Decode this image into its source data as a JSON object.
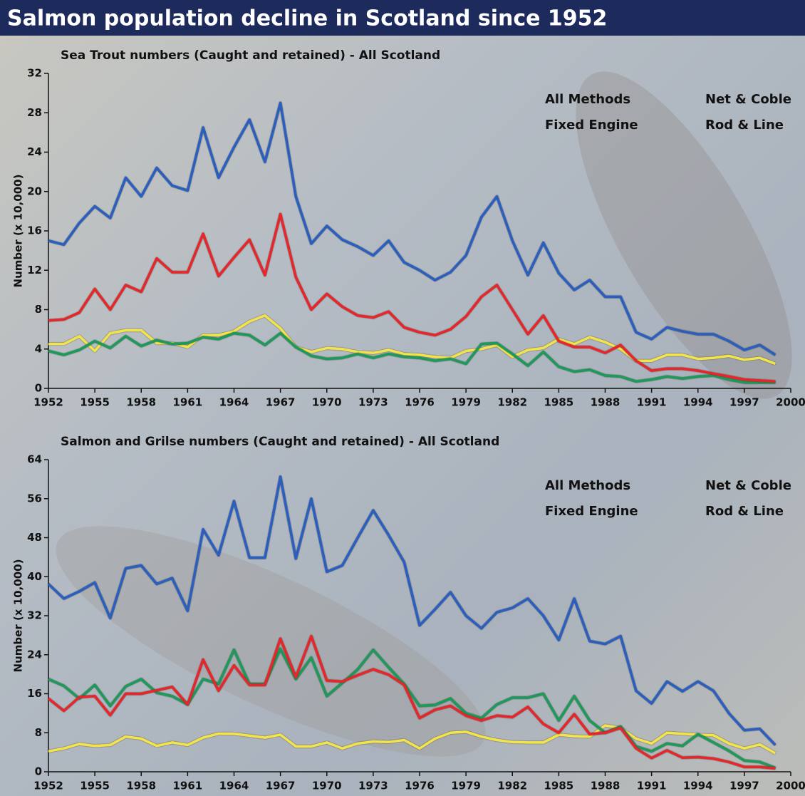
{
  "title": "Salmon population decline in Scotland since 1952",
  "chart_data": [
    {
      "type": "line",
      "title": "Sea Trout numbers (Caught and retained) - All Scotland",
      "ylabel": "Number (x 10,000)",
      "x": [
        1952,
        1953,
        1954,
        1955,
        1956,
        1957,
        1958,
        1959,
        1960,
        1961,
        1962,
        1963,
        1964,
        1965,
        1966,
        1967,
        1968,
        1969,
        1970,
        1971,
        1972,
        1973,
        1974,
        1975,
        1976,
        1977,
        1978,
        1979,
        1980,
        1981,
        1982,
        1983,
        1984,
        1985,
        1986,
        1987,
        1988,
        1989,
        1990,
        1991,
        1992,
        1993,
        1994,
        1995,
        1996,
        1997,
        1998,
        1999
      ],
      "xlim": [
        1952,
        2000
      ],
      "xticks": [
        1952,
        1955,
        1958,
        1961,
        1964,
        1967,
        1970,
        1973,
        1976,
        1979,
        1982,
        1985,
        1988,
        1991,
        1994,
        1997,
        2000
      ],
      "ylim": [
        0,
        32
      ],
      "yticks": [
        0,
        4,
        8,
        12,
        16,
        20,
        24,
        28,
        32
      ],
      "legend": "upper right",
      "series": [
        {
          "name": "All Methods",
          "color": "#2a5fbf",
          "values": [
            15,
            14.6,
            16.8,
            18.5,
            17.3,
            21.4,
            19.5,
            22.4,
            20.6,
            20.1,
            26.5,
            21.4,
            24.5,
            27.3,
            23,
            29,
            19.5,
            14.7,
            16.5,
            15.1,
            14.4,
            13.5,
            15,
            12.8,
            12,
            11,
            11.8,
            13.5,
            17.4,
            19.5,
            15,
            11.5,
            14.8,
            11.7,
            10,
            11,
            9.3,
            9.3,
            5.7,
            5,
            6.2,
            5.8,
            5.5,
            5.5,
            4.8,
            3.9,
            4.4,
            3.4
          ]
        },
        {
          "name": "Net & Coble",
          "color": "#e8262a",
          "values": [
            6.9,
            7,
            7.7,
            10.1,
            8,
            10.5,
            9.8,
            13.2,
            11.8,
            11.8,
            15.7,
            11.4,
            13.3,
            15.1,
            11.5,
            17.7,
            11.3,
            8,
            9.6,
            8.3,
            7.4,
            7.2,
            7.8,
            6.2,
            5.7,
            5.4,
            6,
            7.3,
            9.3,
            10.5,
            8,
            5.5,
            7.4,
            4.8,
            4.2,
            4.2,
            3.6,
            4.4,
            2.8,
            1.8,
            2,
            2,
            1.8,
            1.5,
            1.2,
            0.9,
            0.8,
            0.7
          ]
        },
        {
          "name": "Fixed Engine",
          "color": "#1f9a5a",
          "values": [
            3.8,
            3.4,
            3.9,
            4.8,
            4.1,
            5.3,
            4.3,
            4.9,
            4.5,
            4.6,
            5.2,
            5,
            5.6,
            5.4,
            4.4,
            5.6,
            4.2,
            3.3,
            3,
            3.1,
            3.5,
            3.1,
            3.5,
            3.2,
            3.1,
            2.8,
            3,
            2.5,
            4.5,
            4.6,
            3.5,
            2.3,
            3.7,
            2.2,
            1.7,
            1.9,
            1.3,
            1.2,
            0.7,
            0.9,
            1.2,
            1,
            1.2,
            1.3,
            0.9,
            0.6,
            0.6,
            0.6
          ]
        },
        {
          "name": "Rod & Line",
          "color": "#f2e44a",
          "values": [
            4.5,
            4.5,
            5.3,
            3.8,
            5.6,
            5.9,
            5.9,
            4.6,
            4.6,
            4.2,
            5.4,
            5.4,
            5.8,
            6.8,
            7.4,
            6.1,
            4.2,
            3.7,
            4.1,
            4,
            3.7,
            3.6,
            3.9,
            3.5,
            3.4,
            3.2,
            3.1,
            3.8,
            4,
            4.4,
            3.2,
            3.9,
            4.1,
            5,
            4.5,
            5.2,
            4.7,
            4,
            2.8,
            2.8,
            3.4,
            3.4,
            3,
            3.1,
            3.3,
            2.9,
            3.1,
            2.5
          ]
        }
      ]
    },
    {
      "type": "line",
      "title": "Salmon and Grilse numbers (Caught and retained) - All Scotland",
      "ylabel": "Number (x 10,000)",
      "x": [
        1952,
        1953,
        1954,
        1955,
        1956,
        1957,
        1958,
        1959,
        1960,
        1961,
        1962,
        1963,
        1964,
        1965,
        1966,
        1967,
        1968,
        1969,
        1970,
        1971,
        1972,
        1973,
        1974,
        1975,
        1976,
        1977,
        1978,
        1979,
        1980,
        1981,
        1982,
        1983,
        1984,
        1985,
        1986,
        1987,
        1988,
        1989,
        1990,
        1991,
        1992,
        1993,
        1994,
        1995,
        1996,
        1997,
        1998,
        1999
      ],
      "xlim": [
        1952,
        2000
      ],
      "xticks": [
        1952,
        1955,
        1958,
        1961,
        1964,
        1967,
        1970,
        1973,
        1976,
        1979,
        1982,
        1985,
        1988,
        1991,
        1994,
        1997,
        2000
      ],
      "ylim": [
        0,
        64
      ],
      "yticks": [
        0,
        8,
        16,
        24,
        32,
        40,
        48,
        56,
        64
      ],
      "legend": "upper right",
      "series": [
        {
          "name": "All Methods",
          "color": "#2a5fbf",
          "values": [
            38.5,
            35.5,
            37,
            38.8,
            31.5,
            41.7,
            42.3,
            38.5,
            39.7,
            33,
            49.7,
            44.4,
            55.5,
            43.9,
            43.9,
            60.5,
            43.7,
            56,
            41,
            42.3,
            48,
            53.6,
            48.5,
            43,
            30,
            33.3,
            36.8,
            32,
            29.4,
            32.7,
            33.6,
            35.5,
            32,
            27,
            35.5,
            26.8,
            26.2,
            27.8,
            16.6,
            14,
            18.5,
            16.5,
            18.5,
            16.6,
            12,
            8.5,
            8.8,
            5.5
          ]
        },
        {
          "name": "Net & Coble",
          "color": "#e8262a",
          "values": [
            15,
            12.5,
            15.3,
            15.5,
            11.6,
            16,
            16,
            16.7,
            17.4,
            13.8,
            23,
            16.6,
            21.8,
            17.8,
            17.8,
            27.3,
            19.4,
            27.8,
            18.7,
            18.5,
            19.8,
            21,
            19.9,
            17.8,
            11,
            12.7,
            13.5,
            11.5,
            10.5,
            11.5,
            11.2,
            13.3,
            9.8,
            8,
            11.8,
            7.7,
            8,
            9,
            4.8,
            2.8,
            4.4,
            2.9,
            3,
            2.7,
            2,
            1,
            1,
            0.7
          ]
        },
        {
          "name": "Fixed Engine",
          "color": "#1f9a5a",
          "values": [
            19,
            17.6,
            15,
            17.8,
            13.5,
            17.5,
            19,
            16.2,
            15.5,
            13.8,
            19,
            18,
            25,
            18,
            18,
            25.2,
            19,
            23.4,
            15.5,
            18.2,
            21,
            25,
            21.4,
            18,
            13.5,
            13.7,
            15,
            12,
            11,
            13.8,
            15.2,
            15.2,
            16,
            10.5,
            15.5,
            10.5,
            8,
            9.3,
            5.2,
            4.2,
            5.8,
            5.3,
            7.7,
            6,
            4.3,
            2.3,
            2,
            0.8
          ]
        },
        {
          "name": "Rod & Line",
          "color": "#f2e44a",
          "values": [
            4.2,
            4.8,
            5.7,
            5.3,
            5.5,
            7.2,
            6.8,
            5.3,
            6,
            5.5,
            7,
            7.8,
            7.8,
            7.4,
            7,
            7.6,
            5.2,
            5.2,
            6,
            4.8,
            5.8,
            6.2,
            6.1,
            6.5,
            4.8,
            6.8,
            8,
            8.2,
            7.2,
            6.5,
            6.1,
            6,
            6,
            7.6,
            7.3,
            7.2,
            9.5,
            9,
            6.8,
            5.8,
            8,
            7.8,
            7.6,
            7.5,
            5.8,
            4.8,
            5.6,
            3.8
          ]
        }
      ]
    }
  ]
}
